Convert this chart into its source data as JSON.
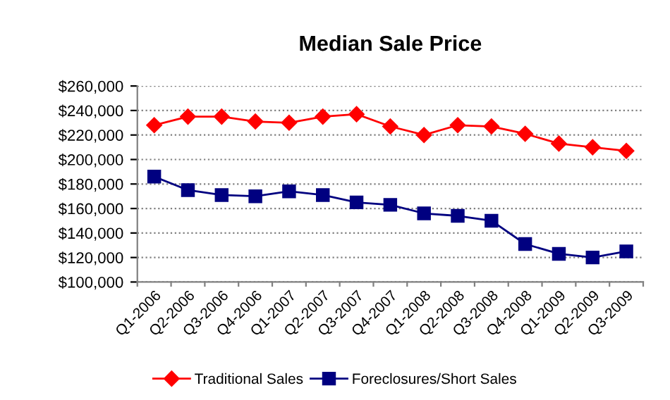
{
  "chart_data": {
    "type": "line",
    "title": "Median Sale Price",
    "categories": [
      "Q1-2006",
      "Q2-2006",
      "Q3-2006",
      "Q4-2006",
      "Q1-2007",
      "Q2-2007",
      "Q3-2007",
      "Q4-2007",
      "Q1-2008",
      "Q2-2008",
      "Q3-2008",
      "Q4-2008",
      "Q1-2009",
      "Q2-2009",
      "Q3-2009"
    ],
    "series": [
      {
        "name": "Traditional Sales",
        "color": "#ff0000",
        "marker": "diamond",
        "values": [
          228000,
          235000,
          235000,
          231000,
          230000,
          235000,
          237000,
          227000,
          220000,
          228000,
          227000,
          221000,
          213000,
          210000,
          207000
        ]
      },
      {
        "name": "Foreclosures/Short Sales",
        "color": "#000080",
        "marker": "square",
        "values": [
          186000,
          175000,
          171000,
          170000,
          174000,
          171000,
          165000,
          163000,
          156000,
          154000,
          150000,
          131000,
          123000,
          120000,
          125000
        ]
      }
    ],
    "ylim": [
      100000,
      260000
    ],
    "yticks": [
      {
        "value": 100000,
        "label": "$100,000"
      },
      {
        "value": 120000,
        "label": "$120,000"
      },
      {
        "value": 140000,
        "label": "$140,000"
      },
      {
        "value": 160000,
        "label": "$160,000"
      },
      {
        "value": 180000,
        "label": "$180,000"
      },
      {
        "value": 200000,
        "label": "$200,000"
      },
      {
        "value": 220000,
        "label": "$220,000"
      },
      {
        "value": 240000,
        "label": "$240,000"
      },
      {
        "value": 260000,
        "label": "$260,000"
      }
    ],
    "grid": "y",
    "legend": "bottom",
    "line_style": "solid"
  }
}
